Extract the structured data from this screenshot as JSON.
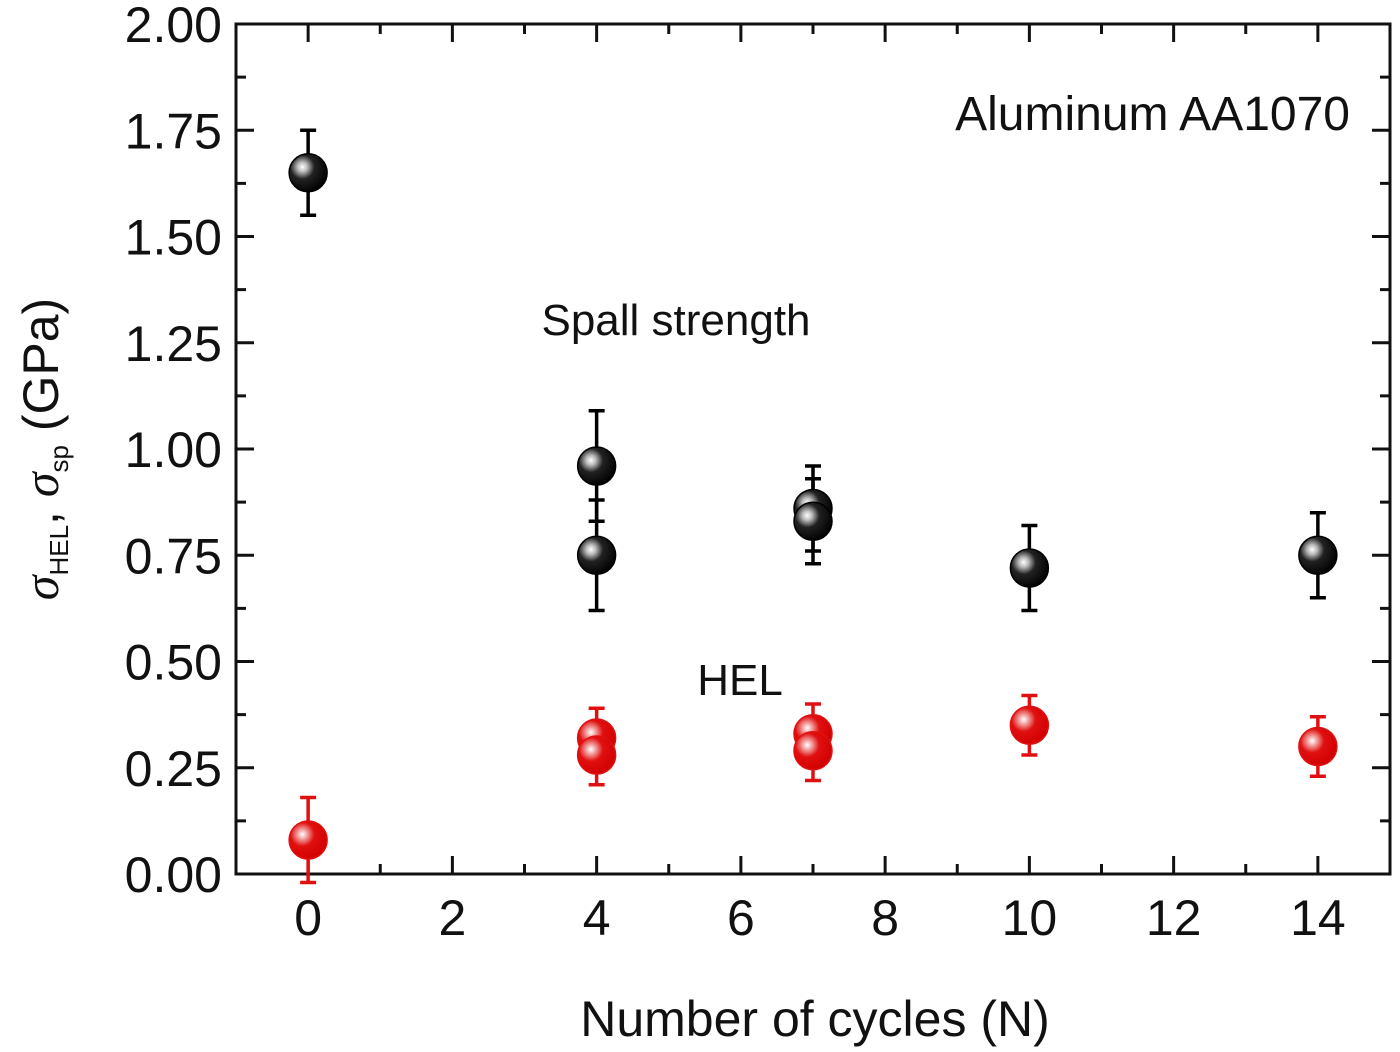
{
  "chart_data": {
    "type": "scatter",
    "title": "",
    "xlabel": "Number of cycles (N)",
    "ylabel": {
      "symbol": "σ",
      "sub1": "HEL",
      "sep": ", ",
      "sub2": "sp",
      "unit": " (GPa)"
    },
    "xlim": [
      -1,
      15
    ],
    "ylim": [
      0,
      2.0
    ],
    "x_ticks": [
      0,
      2,
      4,
      6,
      8,
      10,
      12,
      14
    ],
    "x_tick_labels": [
      "0",
      "2",
      "4",
      "6",
      "8",
      "10",
      "12",
      "14"
    ],
    "y_ticks": [
      0,
      0.25,
      0.5,
      0.75,
      1.0,
      1.25,
      1.5,
      1.75,
      2.0
    ],
    "y_tick_labels": [
      "0.00",
      "0.25",
      "0.50",
      "0.75",
      "1.00",
      "1.25",
      "1.50",
      "1.75",
      "2.00"
    ],
    "grid": false,
    "series": [
      {
        "name": "Spall strength",
        "color": "#000000",
        "points": [
          {
            "x": 0,
            "y": 1.65,
            "err": 0.1
          },
          {
            "x": 4,
            "y": 0.96,
            "err": 0.13
          },
          {
            "x": 4,
            "y": 0.75,
            "err": 0.13
          },
          {
            "x": 7,
            "y": 0.86,
            "err": 0.1
          },
          {
            "x": 7,
            "y": 0.83,
            "err": 0.1
          },
          {
            "x": 10,
            "y": 0.72,
            "err": 0.1
          },
          {
            "x": 14,
            "y": 0.75,
            "err": 0.1
          }
        ]
      },
      {
        "name": "HEL",
        "color": "#e01010",
        "points": [
          {
            "x": 0,
            "y": 0.08,
            "err": 0.1
          },
          {
            "x": 4,
            "y": 0.32,
            "err": 0.07
          },
          {
            "x": 4,
            "y": 0.28,
            "err": 0.07
          },
          {
            "x": 7,
            "y": 0.33,
            "err": 0.07
          },
          {
            "x": 7,
            "y": 0.29,
            "err": 0.07
          },
          {
            "x": 10,
            "y": 0.35,
            "err": 0.07
          },
          {
            "x": 14,
            "y": 0.3,
            "err": 0.07
          }
        ]
      }
    ],
    "annotations": {
      "material": "Aluminum AA1070",
      "spall": "Spall strength",
      "hel": "HEL"
    }
  }
}
